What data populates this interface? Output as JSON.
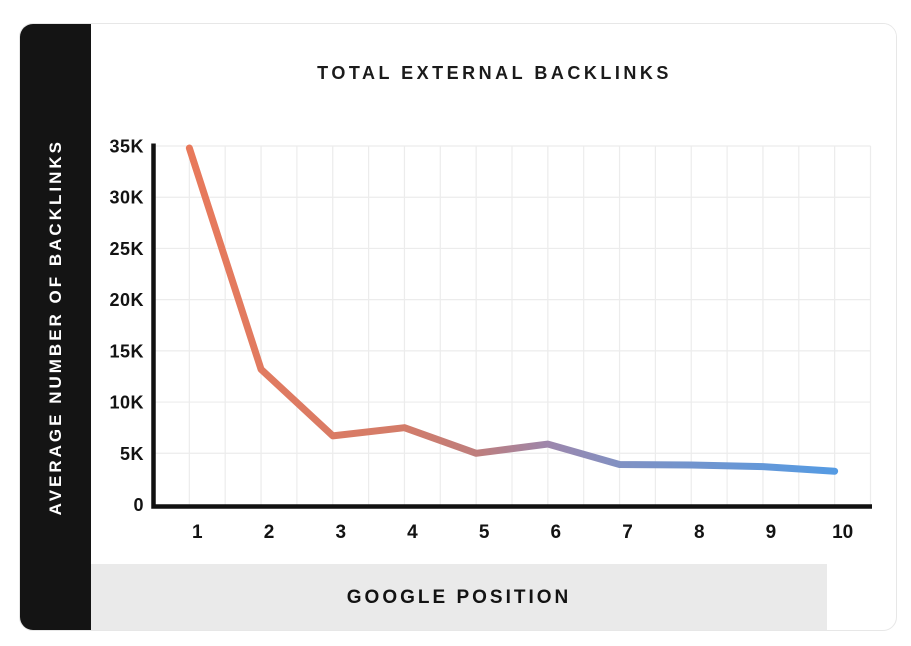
{
  "chart_data": {
    "type": "line",
    "title": "TOTAL EXTERNAL BACKLINKS",
    "xlabel": "GOOGLE POSITION",
    "ylabel": "AVERAGE NUMBER OF BACKLINKS",
    "categories": [
      1,
      2,
      3,
      4,
      5,
      6,
      7,
      8,
      9,
      10
    ],
    "series": [
      {
        "name": "Total external backlinks",
        "values": [
          34800,
          13200,
          6700,
          7500,
          5000,
          5900,
          3900,
          3850,
          3700,
          3250
        ]
      }
    ],
    "x_tick_labels": [
      "1",
      "2",
      "3",
      "4",
      "5",
      "6",
      "7",
      "8",
      "9",
      "10"
    ],
    "y_tick_labels": [
      "35K",
      "30K",
      "25K",
      "20K",
      "15K",
      "10K",
      "5K",
      "0"
    ],
    "y_tick_values": [
      35000,
      30000,
      25000,
      20000,
      15000,
      10000,
      5000,
      0
    ],
    "ylim": [
      0,
      35000
    ],
    "grid": true,
    "legend": false,
    "line_gradient": [
      {
        "offset": 0,
        "color": "#E8795B"
      },
      {
        "offset": 0.33,
        "color": "#D37C69"
      },
      {
        "offset": 0.45,
        "color": "#BD7E7E"
      },
      {
        "offset": 0.56,
        "color": "#9C87AD"
      },
      {
        "offset": 0.67,
        "color": "#8091C3"
      },
      {
        "offset": 1,
        "color": "#559BE3"
      }
    ],
    "colors": {
      "grid": "#ECECEC",
      "axis": "#111111",
      "tick_text": "#131313",
      "line_start": "#E8795B",
      "line_end": "#559BE3"
    }
  },
  "sidebar": {
    "bg": "#141414",
    "text_color": "#FFFFFF"
  },
  "footer": {
    "bg": "#EAEAEA"
  }
}
